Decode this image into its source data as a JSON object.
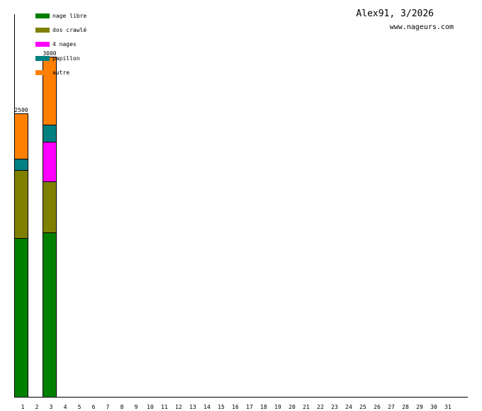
{
  "chart_data": {
    "type": "stacked-bar",
    "title": "Alex91, 3/2026",
    "subtitle": "www.nageurs.com",
    "categories": [
      "1",
      "2",
      "3",
      "4",
      "5",
      "6",
      "7",
      "8",
      "9",
      "10",
      "11",
      "12",
      "13",
      "14",
      "15",
      "16",
      "17",
      "18",
      "19",
      "20",
      "21",
      "22",
      "23",
      "24",
      "25",
      "26",
      "27",
      "28",
      "29",
      "30",
      "31"
    ],
    "series": [
      {
        "name": "nage libre",
        "color": "#008000",
        "values": [
          1400,
          null,
          1450,
          null,
          null,
          null,
          null,
          null,
          null,
          null,
          null,
          null,
          null,
          null,
          null,
          null,
          null,
          null,
          null,
          null,
          null,
          null,
          null,
          null,
          null,
          null,
          null,
          null,
          null,
          null,
          null
        ]
      },
      {
        "name": "dos crawlé",
        "color": "#808000",
        "values": [
          600,
          null,
          450,
          null,
          null,
          null,
          null,
          null,
          null,
          null,
          null,
          null,
          null,
          null,
          null,
          null,
          null,
          null,
          null,
          null,
          null,
          null,
          null,
          null,
          null,
          null,
          null,
          null,
          null,
          null,
          null
        ]
      },
      {
        "name": "4 nages",
        "color": "#ff00ff",
        "values": [
          null,
          null,
          350,
          null,
          null,
          null,
          null,
          null,
          null,
          null,
          null,
          null,
          null,
          null,
          null,
          null,
          null,
          null,
          null,
          null,
          null,
          null,
          null,
          null,
          null,
          null,
          null,
          null,
          null,
          null,
          null
        ]
      },
      {
        "name": "papillon",
        "color": "#008080",
        "values": [
          100,
          null,
          150,
          null,
          null,
          null,
          null,
          null,
          null,
          null,
          null,
          null,
          null,
          null,
          null,
          null,
          null,
          null,
          null,
          null,
          null,
          null,
          null,
          null,
          null,
          null,
          null,
          null,
          null,
          null,
          null
        ]
      },
      {
        "name": "autre",
        "color": "#ff8000",
        "values": [
          400,
          null,
          600,
          null,
          null,
          null,
          null,
          null,
          null,
          null,
          null,
          null,
          null,
          null,
          null,
          null,
          null,
          null,
          null,
          null,
          null,
          null,
          null,
          null,
          null,
          null,
          null,
          null,
          null,
          null,
          null
        ]
      }
    ],
    "totals": [
      2500,
      null,
      3000,
      null,
      null,
      null,
      null,
      null,
      null,
      null,
      null,
      null,
      null,
      null,
      null,
      null,
      null,
      null,
      null,
      null,
      null,
      null,
      null,
      null,
      null,
      null,
      null,
      null,
      null,
      null,
      null
    ],
    "ylim": [
      0,
      3375
    ]
  }
}
